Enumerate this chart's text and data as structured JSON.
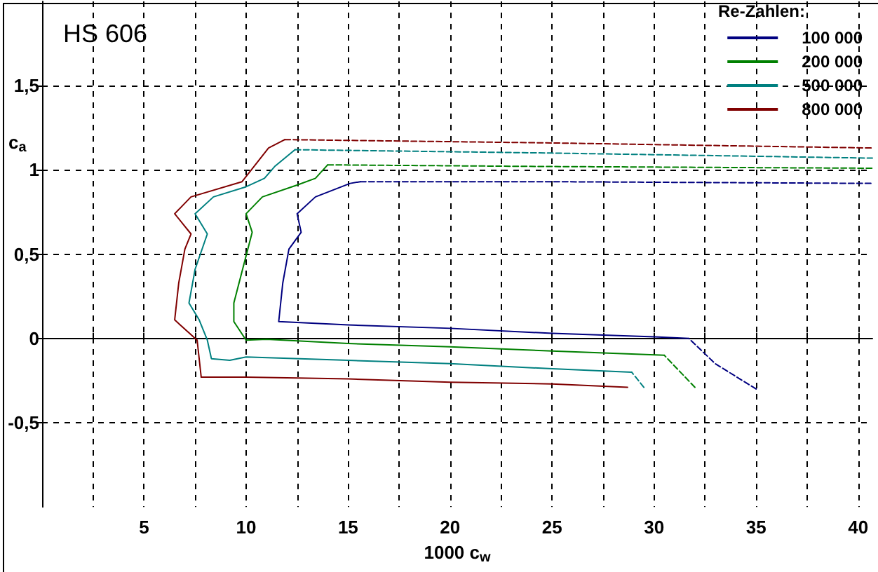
{
  "chart_data": {
    "type": "line",
    "title": "HS 606",
    "xlabel": "1000 c$_{w}$",
    "ylabel": "c$_{a}$",
    "legend_title": "Re-Zahlen:",
    "legend": "top right",
    "grid": true,
    "marker": "none",
    "line_style": "solid",
    "xlim": [
      0,
      40.7
    ],
    "ylim": [
      -1,
      2
    ],
    "xticks": [
      {
        "value": 2.5,
        "label": null
      },
      5,
      {
        "value": 7.5,
        "label": null
      },
      10,
      {
        "value": 12.5,
        "label": null
      },
      15,
      {
        "value": 17.5,
        "label": null
      },
      20,
      {
        "value": 22.5,
        "label": null
      },
      25,
      {
        "value": 27.5,
        "label": null
      },
      30,
      {
        "value": 32.5,
        "label": null
      },
      35,
      {
        "value": 37.5,
        "label": null
      },
      40
    ],
    "yticks": [
      {
        "value": -0.5,
        "label": "-0,5"
      },
      0,
      {
        "value": 0.5,
        "label": "0,5"
      },
      1,
      {
        "value": 1.5,
        "label": "1,5"
      }
    ],
    "series": [
      {
        "name": "100 000",
        "color": "#000080",
        "x": [
          31.7,
          30,
          25,
          20,
          15,
          11.6,
          11.8,
          12.1,
          12.7,
          12.5,
          13.4,
          15.1,
          15.6
        ],
        "values": [
          0,
          0.01,
          0.03,
          0.06,
          0.08,
          0.1,
          0.33,
          0.53,
          0.63,
          0.74,
          0.84,
          0.92,
          0.93
        ]
      },
      {
        "name": "200 000",
        "color": "#008000",
        "x": [
          30.5,
          25,
          20,
          15,
          11,
          10,
          9.4,
          9.4,
          10.3,
          10,
          10.8,
          12.5,
          13.4,
          14
        ],
        "values": [
          -0.1,
          -0.075,
          -0.05,
          -0.03,
          -0.005,
          -0.01,
          0.1,
          0.21,
          0.63,
          0.74,
          0.84,
          0.91,
          0.95,
          1.03
        ]
      },
      {
        "name": "500 000",
        "color": "#008080",
        "x": [
          28.9,
          25,
          20,
          15,
          10,
          9.2,
          8.3,
          8.1,
          7.7,
          7.2,
          7.5,
          8.1,
          7.5,
          8.4,
          10,
          10.9,
          11.4,
          12.4
        ],
        "values": [
          -0.2,
          -0.18,
          -0.15,
          -0.13,
          -0.11,
          -0.13,
          -0.12,
          -0.01,
          0.11,
          0.21,
          0.41,
          0.62,
          0.74,
          0.84,
          0.9,
          0.95,
          1.02,
          1.12
        ]
      },
      {
        "name": "800 000",
        "color": "#800000",
        "x": [
          28.7,
          25,
          20,
          15,
          10,
          7.8,
          7.6,
          6.5,
          6.7,
          7,
          7.3,
          6.5,
          7.3,
          9.8,
          11.1,
          11.9
        ],
        "values": [
          -0.29,
          -0.27,
          -0.26,
          -0.24,
          -0.23,
          -0.23,
          -0.01,
          0.11,
          0.33,
          0.53,
          0.62,
          0.74,
          0.84,
          0.93,
          1.13,
          1.18
        ]
      },
      {
        "color": "#000080",
        "line_style": "dashed",
        "x": [
          35,
          33,
          31.7,
          null,
          15.6,
          25,
          40.7
        ],
        "values": [
          -0.3,
          -0.15,
          0,
          null,
          0.93,
          0.93,
          0.92
        ]
      },
      {
        "color": "#008000",
        "line_style": "dashed",
        "x": [
          32,
          30.5,
          null,
          14,
          25,
          40.7
        ],
        "values": [
          -0.29,
          -0.1,
          null,
          1.03,
          1.02,
          1.01
        ]
      },
      {
        "color": "#008080",
        "line_style": "dashed",
        "x": [
          29.5,
          28.9,
          null,
          12.4,
          25,
          40.7
        ],
        "values": [
          -0.29,
          -0.2,
          null,
          1.12,
          1.1,
          1.07
        ]
      },
      {
        "color": "#800000",
        "line_style": "dashed",
        "x": [
          11.9,
          25,
          40.7
        ],
        "values": [
          1.18,
          1.16,
          1.13
        ]
      }
    ]
  }
}
